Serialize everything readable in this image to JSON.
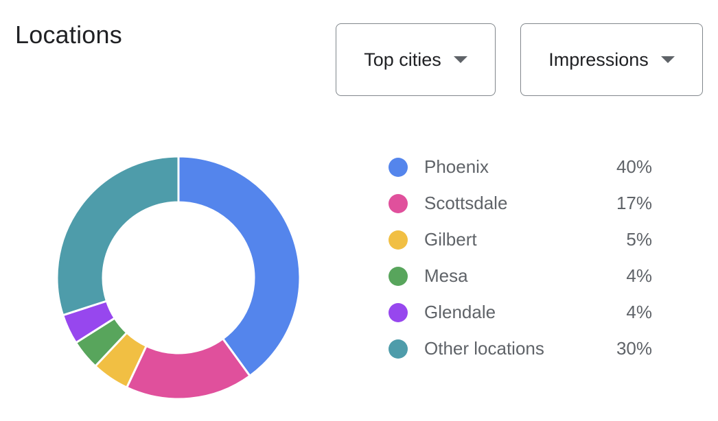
{
  "header": {
    "title": "Locations"
  },
  "controls": {
    "city_filter": {
      "label": "Top cities",
      "icon": "chevron-down-icon"
    },
    "metric_filter": {
      "label": "Impressions",
      "icon": "chevron-down-icon"
    }
  },
  "chart_data": {
    "type": "pie",
    "donut": true,
    "title": "",
    "legend_position": "right",
    "categories": [
      "Phoenix",
      "Scottsdale",
      "Gilbert",
      "Mesa",
      "Glendale",
      "Other locations"
    ],
    "values": [
      40,
      17,
      5,
      4,
      4,
      30
    ],
    "labels": [
      "40%",
      "17%",
      "5%",
      "4%",
      "4%",
      "30%"
    ],
    "colors": [
      "#5485ec",
      "#e0509c",
      "#f1bf43",
      "#58a55c",
      "#9747ee",
      "#4e9caa"
    ]
  }
}
